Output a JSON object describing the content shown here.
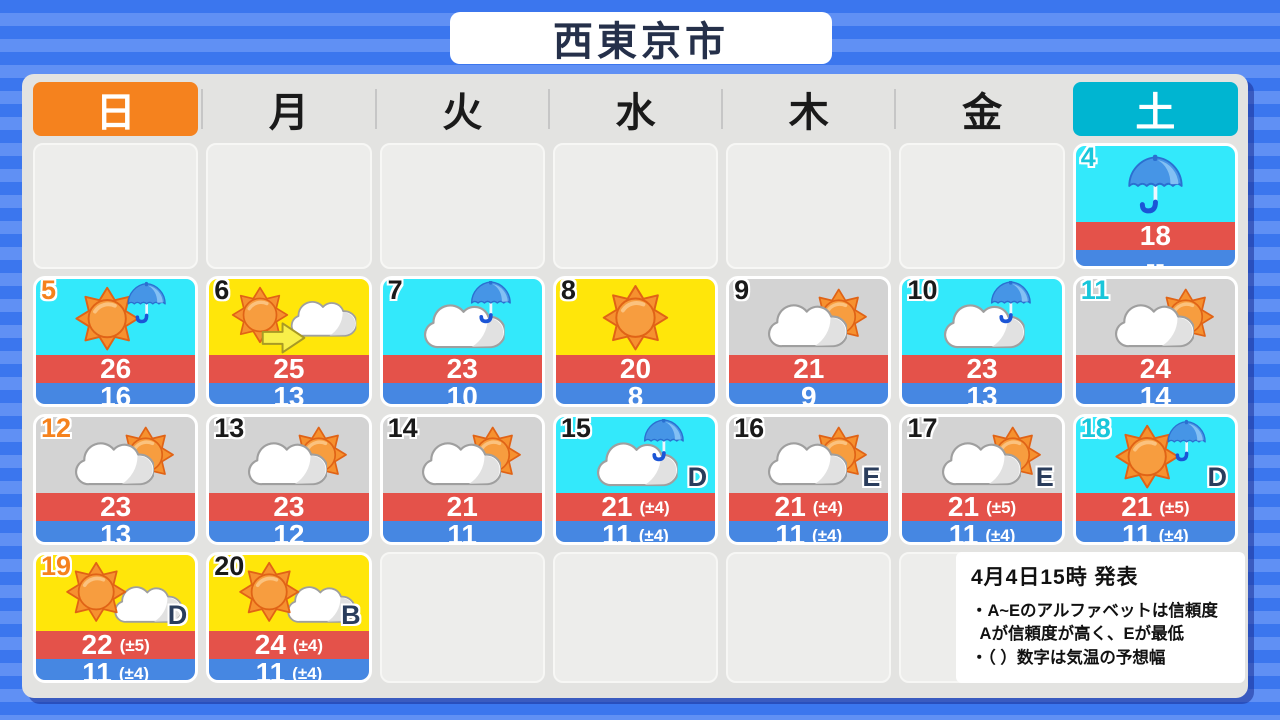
{
  "header": {
    "title": "西東京市"
  },
  "weekdays": [
    {
      "label": "日",
      "type": "sunday"
    },
    {
      "label": "月",
      "type": "weekday"
    },
    {
      "label": "火",
      "type": "weekday"
    },
    {
      "label": "水",
      "type": "weekday"
    },
    {
      "label": "木",
      "type": "weekday"
    },
    {
      "label": "金",
      "type": "weekday"
    },
    {
      "label": "土",
      "type": "saturday"
    }
  ],
  "calendar": {
    "empty_cells": [
      {
        "row": 1,
        "col": 0
      },
      {
        "row": 1,
        "col": 1
      },
      {
        "row": 1,
        "col": 2
      },
      {
        "row": 1,
        "col": 3
      },
      {
        "row": 1,
        "col": 4
      },
      {
        "row": 1,
        "col": 5
      },
      {
        "row": 4,
        "col": 2
      },
      {
        "row": 4,
        "col": 3
      },
      {
        "row": 4,
        "col": 4
      },
      {
        "row": 4,
        "col": 5
      }
    ],
    "days": [
      {
        "date": "4",
        "row": 1,
        "col": 6,
        "bg": "cyan",
        "icon": "rain",
        "high": "18",
        "low": "--",
        "date_color": "saturday"
      },
      {
        "date": "5",
        "row": 2,
        "col": 0,
        "bg": "cyan",
        "icon": "sun-umbrella",
        "high": "26",
        "low": "16",
        "date_color": "sunday"
      },
      {
        "date": "6",
        "row": 2,
        "col": 1,
        "bg": "yellow",
        "icon": "sun-arrow-cloud",
        "high": "25",
        "low": "13",
        "date_color": "normal"
      },
      {
        "date": "7",
        "row": 2,
        "col": 2,
        "bg": "cyan",
        "icon": "cloud-umbrella",
        "high": "23",
        "low": "10",
        "date_color": "normal"
      },
      {
        "date": "8",
        "row": 2,
        "col": 3,
        "bg": "yellow",
        "icon": "sun",
        "high": "20",
        "low": "8",
        "date_color": "normal"
      },
      {
        "date": "9",
        "row": 2,
        "col": 4,
        "bg": "gray",
        "icon": "cloud-sun",
        "high": "21",
        "low": "9",
        "date_color": "normal"
      },
      {
        "date": "10",
        "row": 2,
        "col": 5,
        "bg": "cyan",
        "icon": "cloud-umbrella",
        "high": "23",
        "low": "13",
        "date_color": "normal"
      },
      {
        "date": "11",
        "row": 2,
        "col": 6,
        "bg": "gray",
        "icon": "cloud-sun",
        "high": "24",
        "low": "14",
        "date_color": "saturday"
      },
      {
        "date": "12",
        "row": 3,
        "col": 0,
        "bg": "gray",
        "icon": "cloud-sun",
        "high": "23",
        "low": "13",
        "date_color": "sunday"
      },
      {
        "date": "13",
        "row": 3,
        "col": 1,
        "bg": "gray",
        "icon": "cloud-sun",
        "high": "23",
        "low": "12",
        "date_color": "normal"
      },
      {
        "date": "14",
        "row": 3,
        "col": 2,
        "bg": "gray",
        "icon": "cloud-sun",
        "high": "21",
        "low": "11",
        "date_color": "normal"
      },
      {
        "date": "15",
        "row": 3,
        "col": 3,
        "bg": "cyan",
        "icon": "cloud-umbrella",
        "high": "21",
        "high_range": "(±4)",
        "low": "11",
        "low_range": "(±4)",
        "confidence": "D",
        "date_color": "normal"
      },
      {
        "date": "16",
        "row": 3,
        "col": 4,
        "bg": "gray",
        "icon": "cloud-sun",
        "high": "21",
        "high_range": "(±4)",
        "low": "11",
        "low_range": "(±4)",
        "confidence": "E",
        "date_color": "normal"
      },
      {
        "date": "17",
        "row": 3,
        "col": 5,
        "bg": "gray",
        "icon": "cloud-sun",
        "high": "21",
        "high_range": "(±5)",
        "low": "11",
        "low_range": "(±4)",
        "confidence": "E",
        "date_color": "normal"
      },
      {
        "date": "18",
        "row": 3,
        "col": 6,
        "bg": "cyan",
        "icon": "sun-umbrella",
        "high": "21",
        "high_range": "(±5)",
        "low": "11",
        "low_range": "(±4)",
        "confidence": "D",
        "date_color": "saturday"
      },
      {
        "date": "19",
        "row": 4,
        "col": 0,
        "bg": "yellow",
        "icon": "sun-cloud",
        "high": "22",
        "high_range": "(±5)",
        "low": "11",
        "low_range": "(±4)",
        "confidence": "D",
        "date_color": "sunday"
      },
      {
        "date": "20",
        "row": 4,
        "col": 1,
        "bg": "yellow",
        "icon": "sun-cloud",
        "high": "24",
        "high_range": "(±4)",
        "low": "11",
        "low_range": "(±4)",
        "confidence": "B",
        "date_color": "normal"
      }
    ]
  },
  "legend": {
    "issued": "4月4日15時 発表",
    "notes": [
      "・A~Eのアルファベットは信頼度",
      "  Aが信頼度が高く、Eが最低",
      "・（ ）数字は気温の予想幅"
    ]
  },
  "colors": {
    "cyan": "#33e9fb",
    "yellow": "#ffe60a",
    "gray": "#d3d3d3",
    "high_band": "#e4524a",
    "low_band": "#4687e2",
    "sunday": "#f5821e",
    "saturday": "#19c6da",
    "normal": "#1a1a1a"
  }
}
